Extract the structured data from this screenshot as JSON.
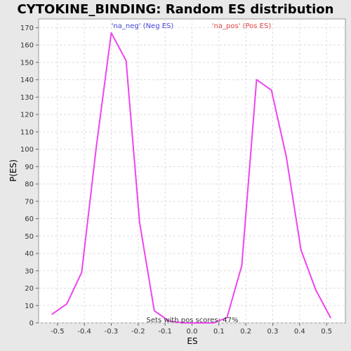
{
  "chart_data": {
    "type": "line",
    "title": "CYTOKINE_BINDING: Random ES distribution",
    "xlabel": "ES",
    "ylabel": "P(ES)",
    "xlim": [
      -0.57,
      0.57
    ],
    "ylim": [
      0,
      175
    ],
    "xticks": [
      -0.5,
      -0.4,
      -0.3,
      -0.2,
      -0.1,
      0.0,
      0.1,
      0.2,
      0.3,
      0.4,
      0.5
    ],
    "xtick_labels": [
      "-0.5",
      "-0.4",
      "-0.3",
      "-0.2",
      "-0.1",
      "0.0",
      "0.1",
      "0.2",
      "0.3",
      "0.4",
      "0.5"
    ],
    "yticks": [
      0,
      10,
      20,
      30,
      40,
      50,
      60,
      70,
      80,
      90,
      100,
      110,
      120,
      130,
      140,
      150,
      160,
      170
    ],
    "grid": true,
    "series": [
      {
        "name": "",
        "color": "#ee44ee",
        "x": [
          -0.52,
          -0.465,
          -0.41,
          -0.355,
          -0.3,
          -0.245,
          -0.195,
          -0.14,
          -0.085,
          -0.03,
          0.025,
          0.08,
          0.13,
          0.185,
          0.24,
          0.295,
          0.35,
          0.405,
          0.46,
          0.515
        ],
        "y": [
          5,
          11,
          29,
          102,
          167,
          151,
          58,
          7,
          1,
          0,
          0,
          0,
          3,
          33,
          140,
          134,
          96,
          42,
          19,
          3
        ]
      }
    ],
    "legend": {
      "placement": "top",
      "entries": [
        {
          "label": "'na_neg' (Neg ES)",
          "color": "#4444dd"
        },
        {
          "label": "'na_pos' (Pos ES)",
          "color": "#dd4444"
        }
      ]
    },
    "annotation": "Sets with pos scores: 47%"
  }
}
